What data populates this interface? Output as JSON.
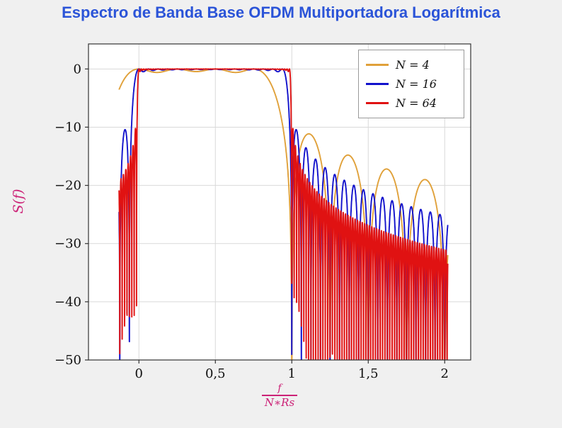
{
  "chart_data": {
    "type": "line",
    "title": "Espectro de Banda Base OFDM Multiportadora Logarítmica",
    "ylabel": "S(f)",
    "xlabel": {
      "numerator": "f",
      "denominator": "N∗Rs"
    },
    "xlim": [
      -0.33,
      2.17
    ],
    "ylim": [
      -50,
      4.3
    ],
    "xticks": [
      0,
      0.5,
      1,
      1.5,
      2
    ],
    "xtick_labels": [
      "0",
      "0,5",
      "1",
      "1,5",
      "2"
    ],
    "yticks": [
      0,
      -10,
      -20,
      -30,
      -40,
      -50
    ],
    "ytick_labels": [
      "0",
      "−10",
      "−20",
      "−30",
      "−40",
      "−50"
    ],
    "grid": true,
    "legend_position": "top-right",
    "x_data_range": [
      -0.13,
      2.02
    ],
    "samples": 4000,
    "model": "S_dB(u) = 10*log10( sum_{k=0..N-1} sinc^2(N*u - k) ), sinc(x) = sin(pi*x)/(pi*x), u = f/(N*Rs); flat 0 dB top over 0<=u<=1, sinc sidelobes beyond band edges, deep nulls every 1/N in u",
    "series": [
      {
        "name": "N = 4",
        "N": 4,
        "color": "#e0a13a"
      },
      {
        "name": "N = 16",
        "N": 16,
        "color": "#1212cc"
      },
      {
        "name": "N = 64",
        "N": 64,
        "color": "#e01212"
      }
    ],
    "colors": {
      "title": "#2b54d8",
      "axis_label": "#cc2277",
      "grid": "#d9d9d9",
      "axis_frame": "#333333",
      "plot_bg": "#ffffff",
      "page_bg": "#f0f0f0",
      "tick_text": "#111111",
      "legend_border": "#9a9a9a"
    }
  }
}
